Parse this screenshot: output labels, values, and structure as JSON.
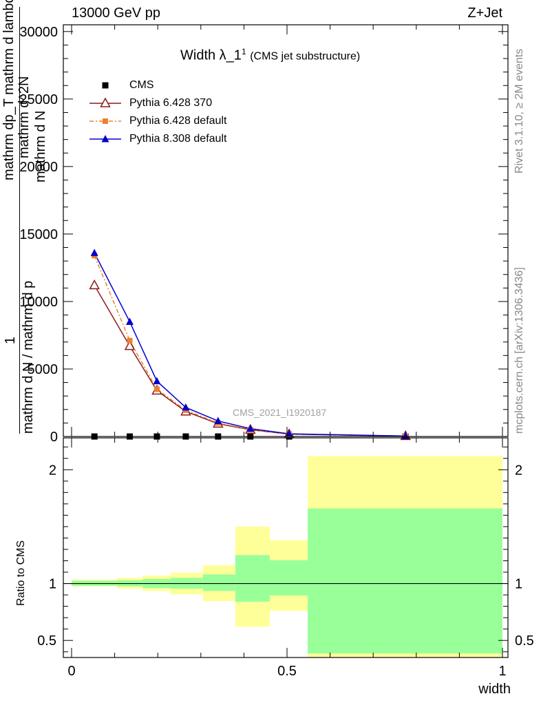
{
  "header": {
    "left": "13000 GeV pp",
    "right": "Z+Jet"
  },
  "side_labels": {
    "rivet": "Rivet 3.1.10, ≥ 2M events",
    "mcplots": "mcplots.cern.ch [arXiv:1306.3436]"
  },
  "chart_data": [
    {
      "type": "line",
      "title": "Width λ_1",
      "title_sup": "1",
      "subtitle": "(CMS jet substructure)",
      "watermark": "CMS_2021_I1920187",
      "ylabel_top": "1",
      "ylabel_numer": "mathrm d N / mathrm d p",
      "ylabel_denom": "mathrm d^2N",
      "ylabel_line2": "mathrm dp_T mathrm d lambda",
      "ylabel_line3": "mathrm d N",
      "ylim": [
        0,
        30500
      ],
      "yticks": [
        0,
        5000,
        10000,
        15000,
        20000,
        25000,
        30000
      ],
      "ytick_labels": [
        "0",
        "5000",
        "10000",
        "15000",
        "20000",
        "25000",
        "30000"
      ],
      "xlim": [
        -0.02,
        1.0
      ],
      "x": [
        0.053,
        0.135,
        0.198,
        0.265,
        0.34,
        0.415,
        0.505,
        0.775
      ],
      "series": [
        {
          "name": "CMS",
          "color": "#000000",
          "marker": "square",
          "values": [
            0,
            0,
            0,
            0,
            0,
            0,
            0,
            0
          ]
        },
        {
          "name": "Pythia 6.428 370",
          "color": "#8b1a1a",
          "marker": "open-triangle",
          "dash": "solid",
          "values": [
            11200,
            6700,
            3400,
            1850,
            950,
            500,
            170,
            30
          ]
        },
        {
          "name": "Pythia 6.428 default",
          "color": "#f07f2e",
          "marker": "small-square",
          "dash": "dashdot",
          "values": [
            13400,
            7100,
            3500,
            1950,
            1000,
            520,
            180,
            30
          ]
        },
        {
          "name": "Pythia 8.308 default",
          "color": "#0000cc",
          "marker": "filled-triangle",
          "dash": "solid",
          "values": [
            13600,
            8500,
            4100,
            2150,
            1150,
            580,
            200,
            35
          ]
        }
      ]
    },
    {
      "type": "area",
      "ylabel": "Ratio to CMS",
      "xlabel": "width",
      "ylim": [
        0.35,
        2.28
      ],
      "yticks": [
        0.5,
        1,
        2
      ],
      "ytick_labels": [
        "0.5",
        "1",
        "2"
      ],
      "xticks": [
        0,
        0.5,
        1
      ],
      "xtick_labels": [
        "0",
        "0.5",
        "1"
      ],
      "reference_line": 1,
      "bins": [
        {
          "x0": 0.0,
          "x1": 0.105,
          "green": [
            0.98,
            1.025
          ],
          "yellow": [
            0.975,
            1.035
          ]
        },
        {
          "x0": 0.105,
          "x1": 0.165,
          "green": [
            0.975,
            1.03
          ],
          "yellow": [
            0.955,
            1.05
          ]
        },
        {
          "x0": 0.165,
          "x1": 0.23,
          "green": [
            0.96,
            1.04
          ],
          "yellow": [
            0.935,
            1.07
          ]
        },
        {
          "x0": 0.23,
          "x1": 0.305,
          "green": [
            0.955,
            1.05
          ],
          "yellow": [
            0.905,
            1.095
          ]
        },
        {
          "x0": 0.305,
          "x1": 0.38,
          "green": [
            0.935,
            1.08
          ],
          "yellow": [
            0.845,
            1.16
          ]
        },
        {
          "x0": 0.38,
          "x1": 0.46,
          "green": [
            0.84,
            1.25
          ],
          "yellow": [
            0.62,
            1.5
          ]
        },
        {
          "x0": 0.46,
          "x1": 0.548,
          "green": [
            0.895,
            1.205
          ],
          "yellow": [
            0.76,
            1.38
          ]
        },
        {
          "x0": 0.548,
          "x1": 1.0,
          "green": [
            0.385,
            1.66
          ],
          "yellow": [
            0.35,
            2.12
          ]
        }
      ],
      "green_color": "#99ff99",
      "yellow_color": "#ffff99"
    }
  ]
}
